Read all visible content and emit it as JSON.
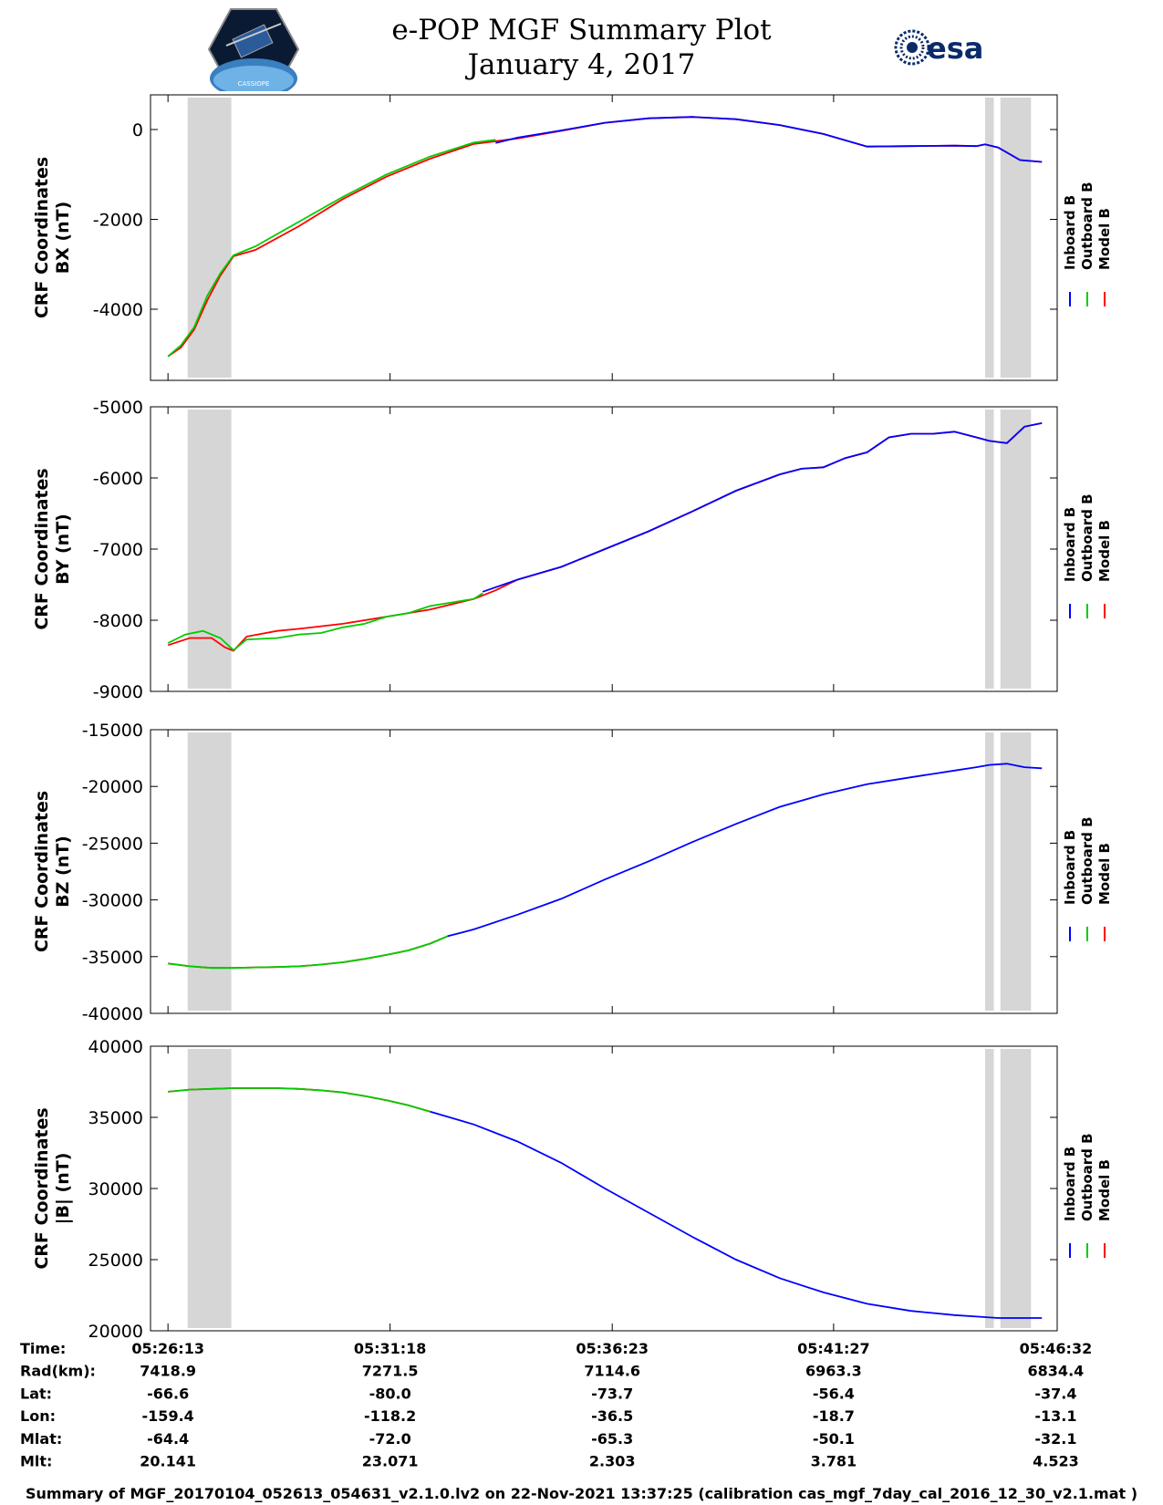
{
  "header": {
    "title": "e-POP MGF Summary Plot",
    "date": "January 4, 2017",
    "esa_logo_text": "esa",
    "mission_logo_text": "CASSIOPE"
  },
  "legend": {
    "items": [
      {
        "name": "Inboard B",
        "color": "#0000ff"
      },
      {
        "name": "Outboard B",
        "color": "#00cc00"
      },
      {
        "name": "Model B",
        "color": "#ff0000"
      }
    ]
  },
  "chart_data": [
    {
      "type": "line",
      "ylabel_line1": "CRF Coordinates",
      "ylabel_line2": "BX (nT)",
      "ylim": [
        -5300,
        800
      ],
      "yticks": [
        -4000,
        -2000,
        0
      ],
      "ytick_labels": [
        "-4000",
        "-2000",
        "0"
      ],
      "shaded_time_ranges_min": [
        [
          0.45,
          1.45
        ],
        [
          18.7,
          18.9
        ],
        [
          19.05,
          19.75
        ]
      ],
      "series": [
        {
          "name": "Inboard B",
          "color": "#0000ff",
          "x": [
            7.5,
            8,
            9,
            10,
            11,
            12,
            13,
            14,
            15,
            16,
            17,
            18,
            18.5,
            18.7,
            19,
            19.5,
            20
          ],
          "y": [
            -300,
            -180,
            -20,
            150,
            250,
            280,
            230,
            100,
            -100,
            -380,
            -370,
            -360,
            -370,
            -330,
            -400,
            -680,
            -720
          ]
        },
        {
          "name": "Outboard B",
          "color": "#00cc00",
          "x": [
            0,
            0.3,
            0.6,
            0.9,
            1.2,
            1.5,
            2,
            3,
            4,
            5,
            6,
            7,
            7.5
          ],
          "y": [
            -5050,
            -4800,
            -4400,
            -3700,
            -3200,
            -2800,
            -2600,
            -2050,
            -1500,
            -1000,
            -600,
            -290,
            -230
          ]
        },
        {
          "name": "Model B",
          "color": "#ff0000",
          "x": [
            0,
            0.3,
            0.6,
            0.9,
            1.2,
            1.5,
            2,
            3,
            4,
            5,
            6,
            7,
            8,
            9,
            10,
            11,
            12,
            13,
            14,
            15,
            16,
            17,
            18,
            18.5,
            18.7,
            19,
            19.5,
            20
          ],
          "y": [
            -5050,
            -4850,
            -4450,
            -3800,
            -3250,
            -2820,
            -2680,
            -2150,
            -1550,
            -1050,
            -650,
            -320,
            -200,
            -30,
            150,
            250,
            280,
            230,
            100,
            -100,
            -380,
            -370,
            -360,
            -370,
            -330,
            -400,
            -680,
            -720
          ]
        }
      ]
    },
    {
      "type": "line",
      "ylabel_line1": "CRF Coordinates",
      "ylabel_line2": "BY (nT)",
      "ylim": [
        -9000,
        -5000
      ],
      "yticks": [
        -9000,
        -8000,
        -7000,
        -6000,
        -5000
      ],
      "ytick_labels": [
        "-9000",
        "-8000",
        "-7000",
        "-6000",
        "-5000"
      ],
      "shaded_time_ranges_min": [
        [
          0.45,
          1.45
        ],
        [
          18.7,
          18.9
        ],
        [
          19.05,
          19.75
        ]
      ],
      "series": [
        {
          "name": "Inboard B",
          "color": "#0000ff",
          "x": [
            7.2,
            8,
            9,
            10,
            11,
            12,
            13,
            14,
            14.5,
            15,
            15.5,
            16,
            16.5,
            17,
            17.5,
            18,
            18.5,
            18.8,
            19.2,
            19.6,
            20
          ],
          "y": [
            -7600,
            -7430,
            -7250,
            -7000,
            -6750,
            -6470,
            -6180,
            -5950,
            -5870,
            -5850,
            -5720,
            -5640,
            -5430,
            -5380,
            -5380,
            -5350,
            -5430,
            -5480,
            -5510,
            -5280,
            -5230
          ]
        },
        {
          "name": "Outboard B",
          "color": "#00cc00",
          "x": [
            0,
            0.4,
            0.8,
            1.2,
            1.5,
            1.8,
            2.5,
            3,
            3.5,
            4,
            4.5,
            5,
            5.5,
            6,
            6.5,
            7,
            7.2
          ],
          "y": [
            -8320,
            -8200,
            -8150,
            -8250,
            -8420,
            -8270,
            -8250,
            -8200,
            -8180,
            -8100,
            -8050,
            -7950,
            -7900,
            -7800,
            -7750,
            -7700,
            -7620
          ]
        },
        {
          "name": "Model B",
          "color": "#ff0000",
          "x": [
            0,
            0.5,
            1,
            1.3,
            1.5,
            1.8,
            2.5,
            3,
            4,
            5,
            6,
            7,
            7.5,
            8,
            9,
            10,
            11,
            12,
            13,
            14,
            14.5,
            15,
            15.5,
            16,
            16.5,
            17,
            17.5,
            18,
            18.5,
            18.8,
            19.2,
            19.6,
            20
          ],
          "y": [
            -8350,
            -8250,
            -8250,
            -8380,
            -8430,
            -8230,
            -8150,
            -8120,
            -8050,
            -7950,
            -7850,
            -7700,
            -7580,
            -7430,
            -7250,
            -7000,
            -6750,
            -6470,
            -6180,
            -5950,
            -5870,
            -5850,
            -5720,
            -5640,
            -5430,
            -5380,
            -5380,
            -5350,
            -5430,
            -5480,
            -5510,
            -5280,
            -5230
          ]
        }
      ]
    },
    {
      "type": "line",
      "ylabel_line1": "CRF Coordinates",
      "ylabel_line2": "BZ (nT)",
      "ylim": [
        -40000,
        -15000
      ],
      "yticks": [
        -40000,
        -35000,
        -30000,
        -25000,
        -20000,
        -15000
      ],
      "ytick_labels": [
        "-40000",
        "-35000",
        "-30000",
        "-25000",
        "-20000",
        "-15000"
      ],
      "shaded_time_ranges_min": [
        [
          0.45,
          1.45
        ],
        [
          18.7,
          18.9
        ],
        [
          19.05,
          19.75
        ]
      ],
      "series": [
        {
          "name": "Inboard B",
          "color": "#0000ff",
          "x": [
            6.4,
            7,
            8,
            9,
            10,
            11,
            12,
            13,
            14,
            15,
            16,
            17,
            18,
            18.5,
            18.8,
            19.2,
            19.6,
            20
          ],
          "y": [
            -33200,
            -32600,
            -31300,
            -29900,
            -28200,
            -26600,
            -24900,
            -23300,
            -21800,
            -20700,
            -19800,
            -19200,
            -18600,
            -18300,
            -18100,
            -18000,
            -18300,
            -18400
          ]
        },
        {
          "name": "Outboard B",
          "color": "#00cc00",
          "x": [
            0,
            0.5,
            1,
            1.5,
            2,
            2.5,
            3,
            3.5,
            4,
            4.5,
            5,
            5.5,
            6,
            6.4
          ],
          "y": [
            -35600,
            -35850,
            -36000,
            -36000,
            -35950,
            -35920,
            -35850,
            -35700,
            -35500,
            -35200,
            -34850,
            -34450,
            -33850,
            -33200
          ]
        },
        {
          "name": "Model B",
          "color": "#ff0000",
          "x": [
            0,
            0.5,
            1,
            1.5,
            2,
            2.5,
            3,
            3.5,
            4,
            4.5,
            5,
            5.5,
            6,
            6.4
          ],
          "y": [
            -35600,
            -35850,
            -36000,
            -36000,
            -35950,
            -35920,
            -35850,
            -35700,
            -35500,
            -35200,
            -34850,
            -34450,
            -33850,
            -33200
          ]
        }
      ]
    },
    {
      "type": "line",
      "ylabel_line1": "CRF Coordinates",
      "ylabel_line2": "|B| (nT)",
      "ylim": [
        20000,
        40000
      ],
      "yticks": [
        20000,
        25000,
        30000,
        35000,
        40000
      ],
      "ytick_labels": [
        "20000",
        "25000",
        "30000",
        "35000",
        "40000"
      ],
      "shaded_time_ranges_min": [
        [
          0.45,
          1.45
        ],
        [
          18.7,
          18.9
        ],
        [
          19.05,
          19.75
        ]
      ],
      "series": [
        {
          "name": "Inboard B",
          "color": "#0000ff",
          "x": [
            6,
            7,
            8,
            9,
            10,
            11,
            12,
            13,
            14,
            15,
            16,
            17,
            18,
            18.5,
            19,
            19.5,
            20
          ],
          "y": [
            35400,
            34500,
            33300,
            31800,
            30000,
            28300,
            26600,
            25000,
            23700,
            22700,
            21900,
            21400,
            21100,
            21000,
            20900,
            20900,
            20900
          ]
        },
        {
          "name": "Outboard B",
          "color": "#00cc00",
          "x": [
            0,
            0.5,
            1,
            1.5,
            2,
            2.5,
            3,
            3.5,
            4,
            4.5,
            5,
            5.5,
            6
          ],
          "y": [
            36800,
            36950,
            37000,
            37050,
            37050,
            37050,
            37000,
            36900,
            36750,
            36500,
            36200,
            35850,
            35400
          ]
        },
        {
          "name": "Model B",
          "color": "#ff0000",
          "x": [
            0,
            0.5,
            1,
            1.5,
            2,
            2.5,
            3,
            3.5,
            4,
            4.5,
            5,
            5.5,
            6
          ],
          "y": [
            36800,
            36950,
            37000,
            37050,
            37050,
            37050,
            37000,
            36900,
            36750,
            36500,
            36200,
            35850,
            35400
          ]
        }
      ]
    }
  ],
  "time_table": {
    "row_labels": [
      "Time:",
      "Rad(km):",
      "Lat:",
      "Lon:",
      "Mlat:",
      "Mlt:"
    ],
    "columns": [
      {
        "time_min": 0,
        "values": [
          "05:26:13",
          "7418.9",
          "-66.6",
          "-159.4",
          "-64.4",
          "20.141"
        ]
      },
      {
        "time_min": 5.083,
        "values": [
          "05:31:18",
          "7271.5",
          "-80.0",
          "-118.2",
          "-72.0",
          "23.071"
        ]
      },
      {
        "time_min": 10.167,
        "values": [
          "05:36:23",
          "7114.6",
          "-73.7",
          "-36.5",
          "-65.3",
          "2.303"
        ]
      },
      {
        "time_min": 15.233,
        "values": [
          "05:41:27",
          "6963.3",
          "-56.4",
          "-18.7",
          "-50.1",
          "3.781"
        ]
      },
      {
        "time_min": 20.317,
        "values": [
          "05:46:32",
          "6834.4",
          "-37.4",
          "-13.1",
          "-32.1",
          "4.523"
        ]
      }
    ]
  },
  "footer": "Summary of MGF_20170104_052613_054631_v2.1.0.lv2 on 22-Nov-2021 13:37:25 (calibration cas_mgf_7day_cal_2016_12_30_v2.1.mat )"
}
